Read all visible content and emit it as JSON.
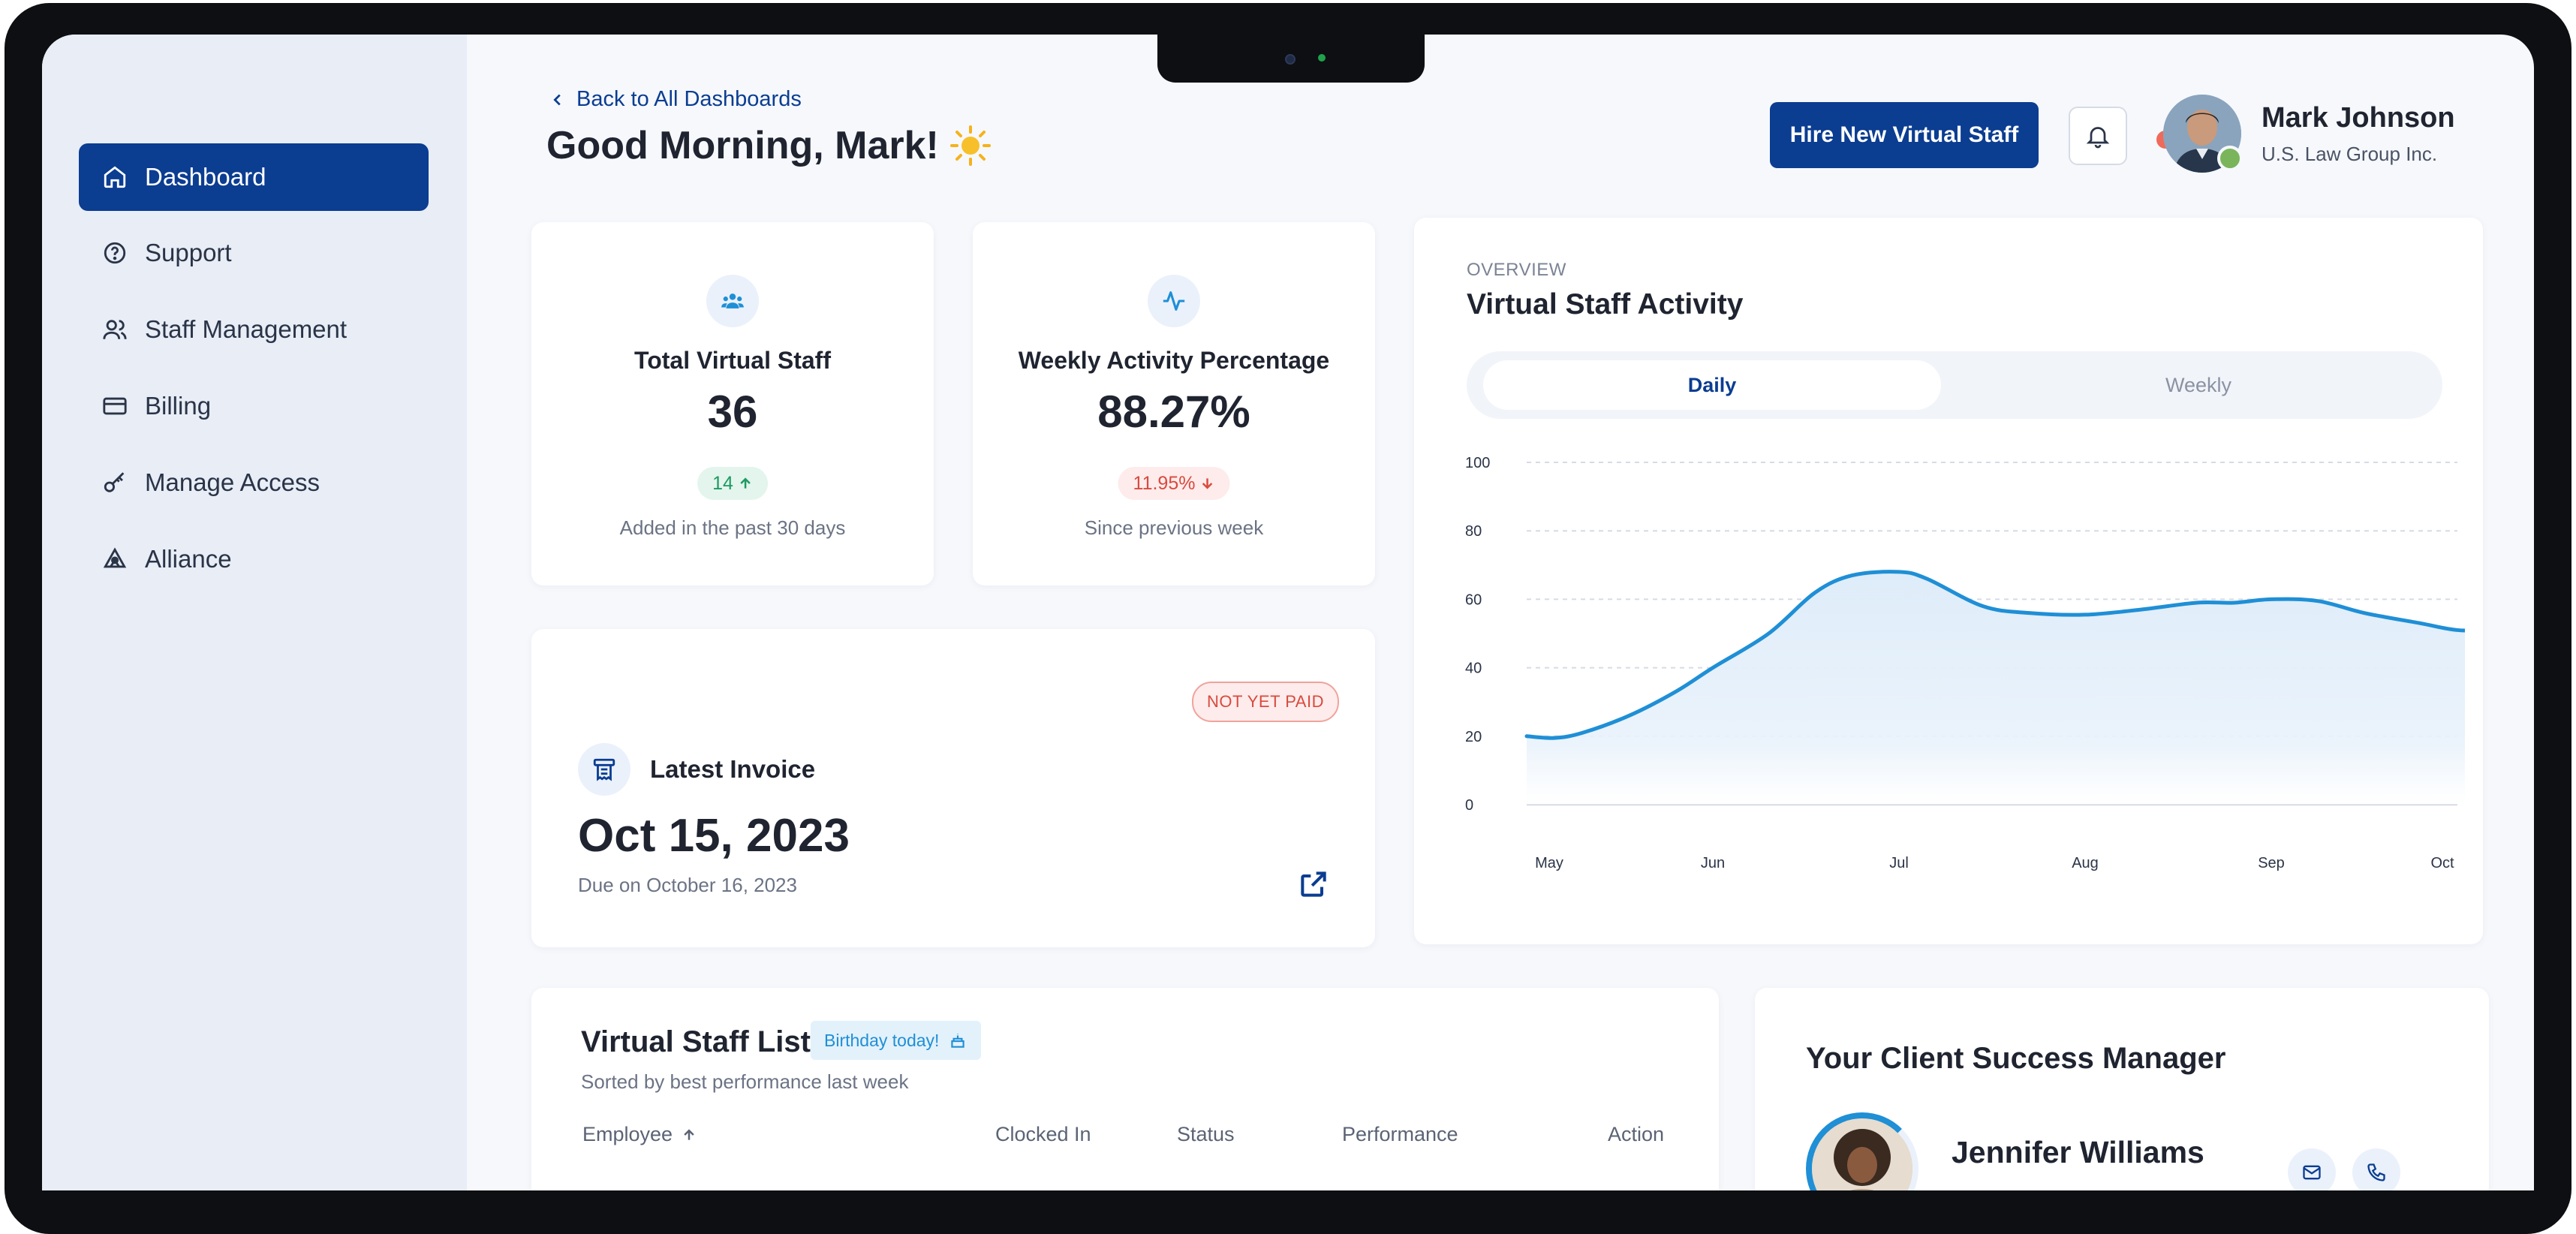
{
  "sidebar": {
    "items": [
      {
        "label": "Dashboard",
        "icon": "home-icon",
        "active": true
      },
      {
        "label": "Support",
        "icon": "help-circle-icon"
      },
      {
        "label": "Staff Management",
        "icon": "users-icon"
      },
      {
        "label": "Billing",
        "icon": "credit-card-icon"
      },
      {
        "label": "Manage Access",
        "icon": "key-icon"
      },
      {
        "label": "Alliance",
        "icon": "alliance-icon"
      }
    ]
  },
  "header": {
    "back_label": "Back to All Dashboards",
    "greeting": "Good Morning, Mark!",
    "hire_button": "Hire New Virtual Staff",
    "user_name": "Mark Johnson",
    "user_org": "U.S. Law Group Inc."
  },
  "stats": {
    "total_staff": {
      "label": "Total Virtual Staff",
      "value": "36",
      "change": "14",
      "change_direction": "up",
      "subtext": "Added in the past 30 days"
    },
    "activity": {
      "label": "Weekly Activity Percentage",
      "value": "88.27%",
      "change": "11.95%",
      "change_direction": "down",
      "subtext": "Since previous week"
    }
  },
  "invoice": {
    "status": "NOT YET  PAID",
    "title": "Latest Invoice",
    "date": "Oct 15, 2023",
    "due": "Due on October 16, 2023"
  },
  "activity_chart": {
    "overline": "OVERVIEW",
    "title": "Virtual Staff Activity",
    "tabs": [
      {
        "label": "Daily",
        "active": true
      },
      {
        "label": "Weekly",
        "active": false
      }
    ]
  },
  "chart_data": {
    "type": "area",
    "title": "Virtual Staff Activity",
    "x": [
      "May",
      "Jun",
      "Jul",
      "Aug",
      "Sep",
      "Oct"
    ],
    "y_ticks": [
      0,
      20,
      40,
      60,
      80,
      100
    ],
    "ylim": [
      0,
      100
    ],
    "grid": true,
    "series": [
      {
        "points": [
          [
            0.0,
            20
          ],
          [
            0.15,
            19.5
          ],
          [
            0.3,
            21
          ],
          [
            0.55,
            26
          ],
          [
            0.8,
            33
          ],
          [
            1.0,
            40
          ],
          [
            1.3,
            50
          ],
          [
            1.55,
            62
          ],
          [
            1.75,
            67
          ],
          [
            2.0,
            68
          ],
          [
            2.15,
            66
          ],
          [
            2.45,
            58
          ],
          [
            2.7,
            56
          ],
          [
            3.0,
            55.5
          ],
          [
            3.3,
            57
          ],
          [
            3.6,
            59
          ],
          [
            3.8,
            59
          ],
          [
            4.0,
            60
          ],
          [
            4.25,
            59.5
          ],
          [
            4.5,
            56
          ],
          [
            4.8,
            53
          ],
          [
            5.0,
            51
          ],
          [
            5.2,
            51
          ]
        ]
      }
    ],
    "colors": {
      "line": "#1f8fd6",
      "fill": "#e4f0fb"
    }
  },
  "staff_list": {
    "title": "Virtual Staff List",
    "badge": "Birthday today!",
    "subtitle": "Sorted by best performance last week",
    "columns": [
      "Employee",
      "Clocked In",
      "Status",
      "Performance",
      "Action"
    ]
  },
  "csm": {
    "title": "Your Client Success Manager",
    "name": "Jennifer Williams"
  },
  "colors": {
    "primary": "#0b3d91",
    "accent": "#1f8fd6",
    "success": "#1d9a62",
    "danger": "#d94a3f",
    "sidebar_bg": "#e8edf6"
  }
}
